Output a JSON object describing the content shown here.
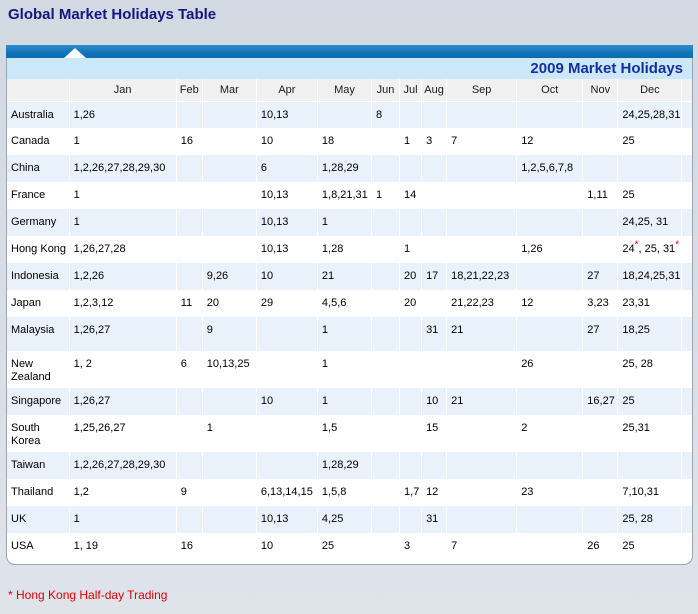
{
  "page_title": "Global Market Holidays Table",
  "panel": {
    "banner_title": "2009 Market Holidays"
  },
  "table": {
    "corner_label": "",
    "columns": [
      "Jan",
      "Feb",
      "Mar",
      "Apr",
      "May",
      "Jun",
      "Jul",
      "Aug",
      "Sep",
      "Oct",
      "Nov",
      "Dec"
    ],
    "rows": [
      {
        "country": "Australia",
        "cells": [
          "1,26",
          "",
          "",
          "10,13",
          "",
          "8",
          "",
          "",
          "",
          "",
          "",
          "24,25,28,31"
        ]
      },
      {
        "country": "Canada",
        "cells": [
          "1",
          "16",
          "",
          "10",
          "18",
          "",
          "1",
          "3",
          "7",
          "12",
          "",
          "25"
        ]
      },
      {
        "country": "China",
        "cells": [
          "1,2,26,27,28,29,30",
          "",
          "",
          "6",
          "1,28,29",
          "",
          "",
          "",
          "",
          "1,2,5,6,7,8",
          "",
          ""
        ]
      },
      {
        "country": "France",
        "cells": [
          "1",
          "",
          "",
          "10,13",
          "1,8,21,31",
          "1",
          "14",
          "",
          "",
          "",
          "1,11",
          "25"
        ]
      },
      {
        "country": "Germany",
        "cells": [
          "1",
          "",
          "",
          "10,13",
          "1",
          "",
          "",
          "",
          "",
          "",
          "",
          "24,25, 31"
        ]
      },
      {
        "country": "Hong Kong",
        "cells": [
          "1,26,27,28",
          "",
          "",
          "10,13",
          "1,28",
          "",
          "1",
          "",
          "",
          "1,26",
          "",
          "24*, 25, 31*"
        ]
      },
      {
        "country": "Indonesia",
        "cells": [
          "1,2,26",
          "",
          "9,26",
          "10",
          "21",
          "",
          "20",
          "17",
          "18,21,22,23",
          "",
          "27",
          "18,24,25,31"
        ]
      },
      {
        "country": "Japan",
        "cells": [
          "1,2,3,12",
          "11",
          "20",
          "29",
          "4,5,6",
          "",
          "20",
          "",
          "21,22,23",
          "12",
          "3,23",
          "23,31"
        ]
      },
      {
        "country": "Malaysia",
        "cells": [
          "1,26,27",
          "",
          "9",
          "",
          "1",
          "",
          "",
          "31",
          "21",
          "",
          "27",
          "18,25"
        ]
      },
      {
        "country": "New Zealand",
        "cells": [
          "1, 2",
          "6",
          "10,13,25",
          "",
          "1",
          "",
          "",
          "",
          "",
          "26",
          "",
          "25, 28"
        ]
      },
      {
        "country": "Singapore",
        "cells": [
          "1,26,27",
          "",
          "",
          "10",
          "1",
          "",
          "",
          "10",
          "21",
          "",
          "16,27",
          "25"
        ]
      },
      {
        "country": "South Korea",
        "cells": [
          "1,25,26,27",
          "",
          "1",
          "",
          "1,5",
          "",
          "",
          "15",
          "",
          "2",
          "",
          "25,31"
        ]
      },
      {
        "country": "Taiwan",
        "cells": [
          "1,2,26,27,28,29,30",
          "",
          "",
          "",
          "1,28,29",
          "",
          "",
          "",
          "",
          "",
          "",
          ""
        ]
      },
      {
        "country": "Thailand",
        "cells": [
          "1,2",
          "9",
          "",
          "6,13,14,15",
          "1,5,8",
          "",
          "1,7",
          "12",
          "",
          "23",
          "",
          "7,10,31"
        ]
      },
      {
        "country": "UK",
        "cells": [
          "1",
          "",
          "",
          "10,13",
          "4,25",
          "",
          "",
          "31",
          "",
          "",
          "",
          "25, 28"
        ]
      },
      {
        "country": "USA",
        "cells": [
          "1, 19",
          "16",
          "",
          "10",
          "25",
          "",
          "3",
          "",
          "7",
          "",
          "26",
          "25"
        ]
      }
    ]
  },
  "footnote": "* Hong Kong Half-day Trading",
  "colors": {
    "title": "#15157e",
    "topbar": "#1173ba",
    "banner_bg": "#cbe7f9",
    "banner_text": "#152f9e",
    "header_bg": "#f0f0f0",
    "stripe": "#e9f1fa",
    "red": "#e00000"
  }
}
